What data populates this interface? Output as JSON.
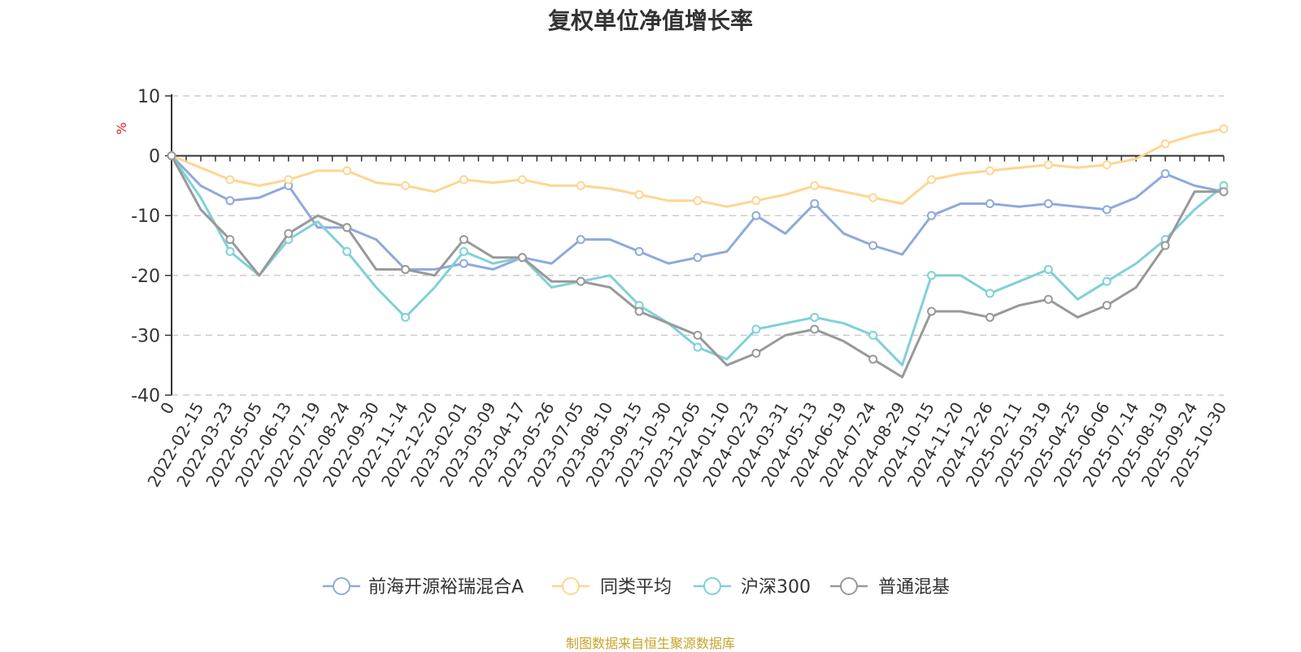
{
  "title": "复权单位净值增长率",
  "footer_note": "制图数据来自恒生聚源数据库",
  "chart_data": {
    "type": "line",
    "ylabel": "%",
    "ylim": [
      -40,
      10
    ],
    "yticks": [
      10,
      0,
      -10,
      -20,
      -30,
      -40
    ],
    "grid": true,
    "legend_position": "bottom",
    "x_labels": [
      "0",
      "2022-02-15",
      "2022-03-23",
      "2022-05-05",
      "2022-06-13",
      "2022-07-19",
      "2022-08-24",
      "2022-09-30",
      "2022-11-14",
      "2022-12-20",
      "2023-02-01",
      "2023-03-09",
      "2023-04-17",
      "2023-05-26",
      "2023-07-05",
      "2023-08-10",
      "2023-09-15",
      "2023-10-30",
      "2023-12-05",
      "2024-01-10",
      "2024-02-23",
      "2024-03-31",
      "2024-05-13",
      "2024-06-19",
      "2024-07-24",
      "2024-08-29",
      "2024-10-15",
      "2024-11-20",
      "2024-12-26",
      "2025-02-11",
      "2025-03-19",
      "2025-04-25",
      "2025-06-06",
      "2025-07-14",
      "2025-08-19",
      "2025-09-24",
      "2025-10-30"
    ],
    "series": [
      {
        "name": "前海开源裕瑞混合A",
        "color": "#8eaadb",
        "values": [
          0,
          -5,
          -7.5,
          -7,
          -5,
          -12,
          -12,
          -14,
          -19,
          -19,
          -18,
          -19,
          -17,
          -18,
          -14,
          -14,
          -16,
          -18,
          -17,
          -16,
          -10,
          -13,
          -8,
          -13,
          -15,
          -16.5,
          -10,
          -8,
          -8,
          -8.5,
          -8,
          -8.5,
          -9,
          -7,
          -3,
          -5,
          -6
        ]
      },
      {
        "name": "同类平均",
        "color": "#ffd591",
        "values": [
          0,
          -2,
          -4,
          -5,
          -4,
          -2.5,
          -2.5,
          -4.5,
          -5,
          -6,
          -4,
          -4.5,
          -4,
          -5,
          -5,
          -5.5,
          -6.5,
          -7.5,
          -7.5,
          -8.5,
          -7.5,
          -6.5,
          -5,
          -6,
          -7,
          -8,
          -4,
          -3,
          -2.5,
          -2,
          -1.5,
          -2,
          -1.5,
          -0.5,
          2,
          3.5,
          4.5
        ]
      },
      {
        "name": "沪深300",
        "color": "#7fd1d6",
        "values": [
          0,
          -7,
          -16,
          -20,
          -14,
          -11,
          -16,
          -22,
          -27,
          -22,
          -16,
          -18,
          -17,
          -22,
          -21,
          -20,
          -25,
          -28,
          -32,
          -34,
          -29,
          -28,
          -27,
          -28,
          -30,
          -35,
          -20,
          -20,
          -23,
          -21,
          -19,
          -24,
          -21,
          -18,
          -14,
          -9,
          -5
        ]
      },
      {
        "name": "普通混基",
        "color": "#999999",
        "values": [
          0,
          -9,
          -14,
          -20,
          -13,
          -10,
          -12,
          -19,
          -19,
          -20,
          -14,
          -17,
          -17,
          -21,
          -21,
          -22,
          -26,
          -28,
          -30,
          -35,
          -33,
          -30,
          -29,
          -31,
          -34,
          -37,
          -26,
          -26,
          -27,
          -25,
          -24,
          -27,
          -25,
          -22,
          -15,
          -6,
          -6
        ]
      }
    ]
  }
}
